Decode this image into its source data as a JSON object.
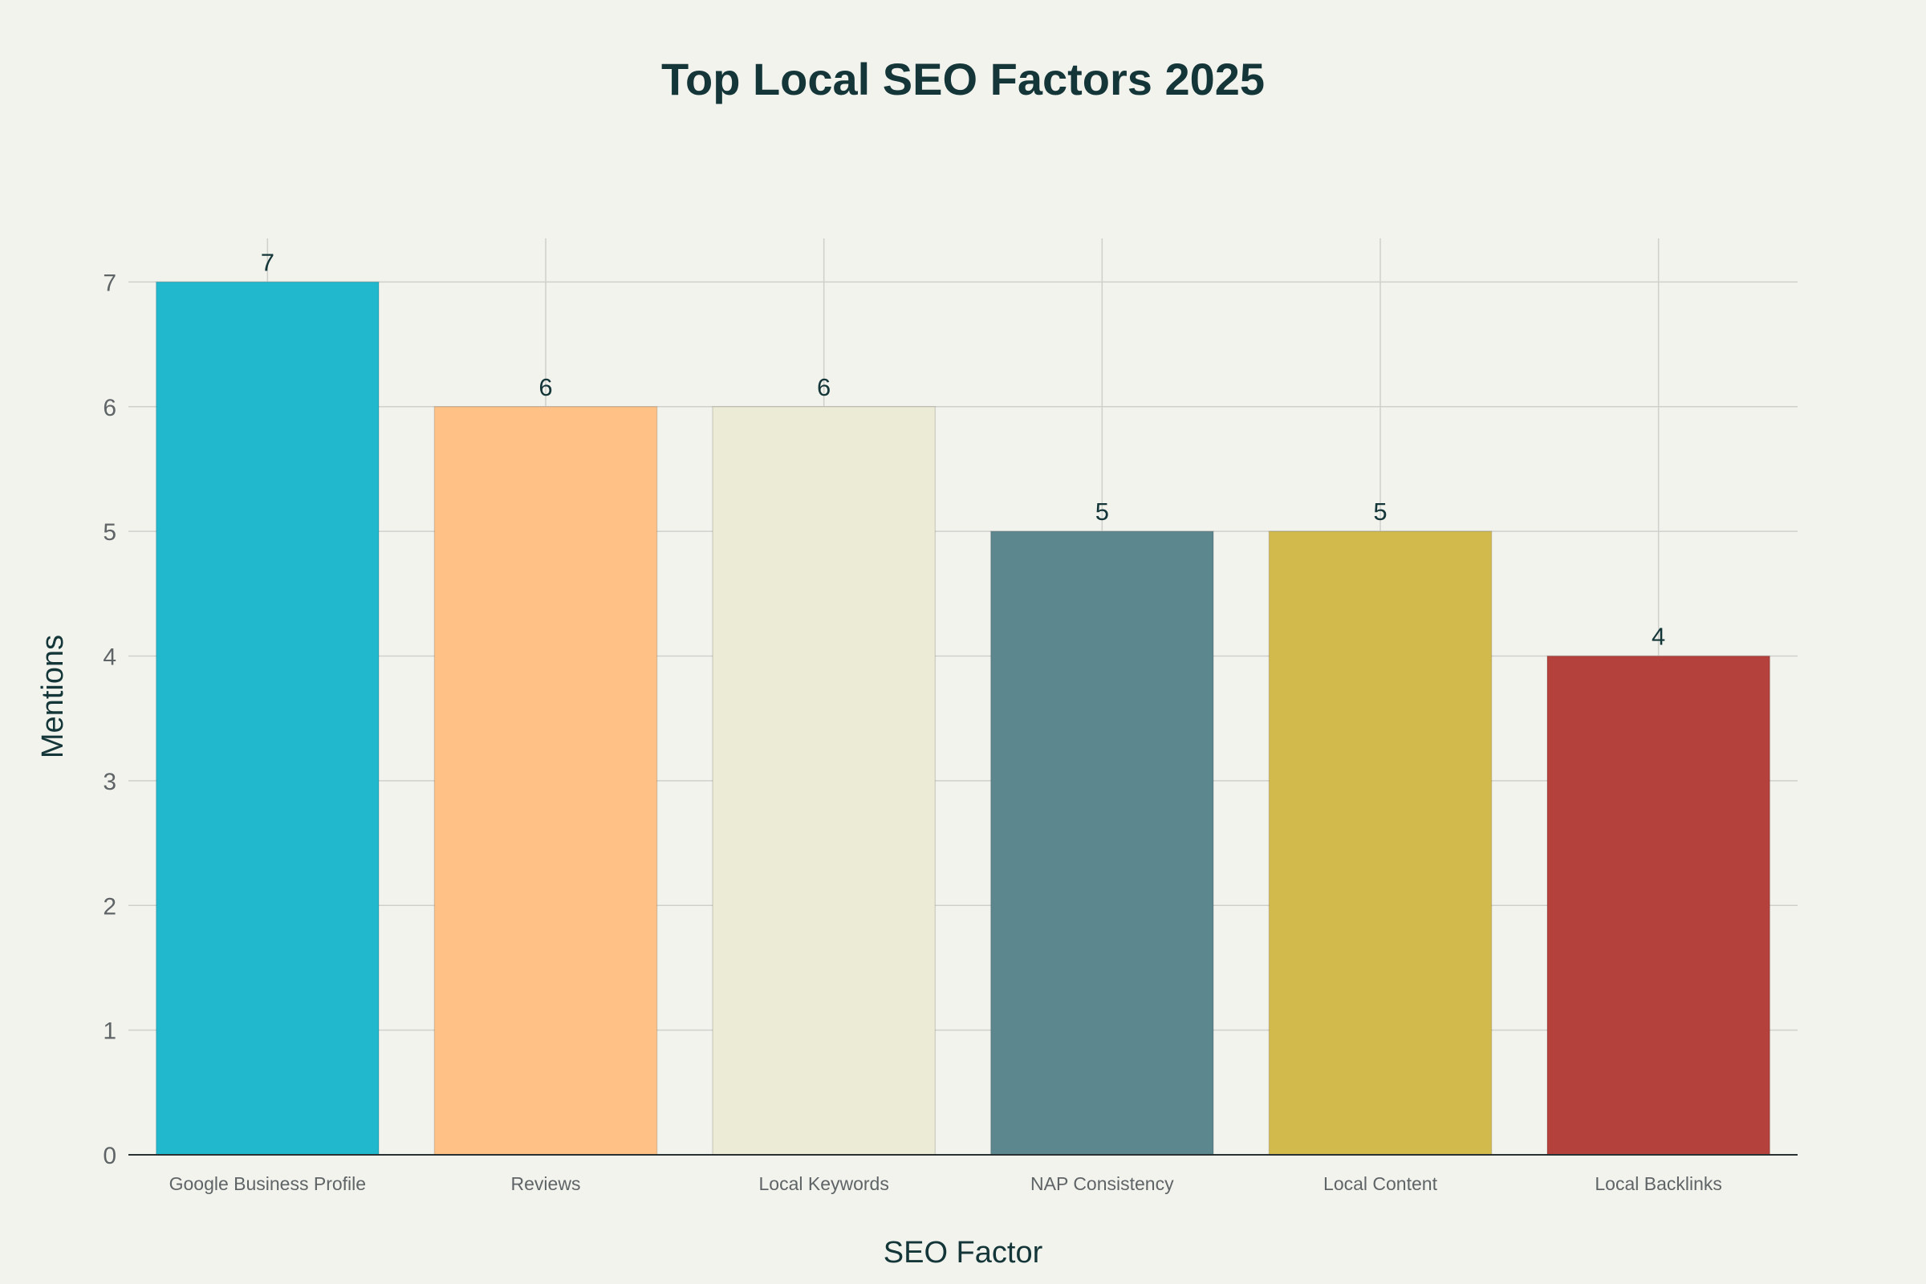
{
  "chart_data": {
    "type": "bar",
    "title": "Top Local SEO Factors 2025",
    "xlabel": "SEO Factor",
    "ylabel": "Mentions",
    "categories": [
      "Google Business Profile",
      "Reviews",
      "Local Keywords",
      "NAP Consistency",
      "Local Content",
      "Local Backlinks"
    ],
    "values": [
      7,
      6,
      6,
      5,
      5,
      4
    ],
    "colors": [
      "#21b8cd",
      "#ffc185",
      "#ecebd5",
      "#5d878f",
      "#d2ba4c",
      "#b4413c"
    ],
    "ylim": [
      0,
      7.35
    ],
    "yticks": [
      "0",
      "1",
      "2",
      "3",
      "4",
      "5",
      "6",
      "7"
    ],
    "grid": true,
    "legend": "none"
  }
}
